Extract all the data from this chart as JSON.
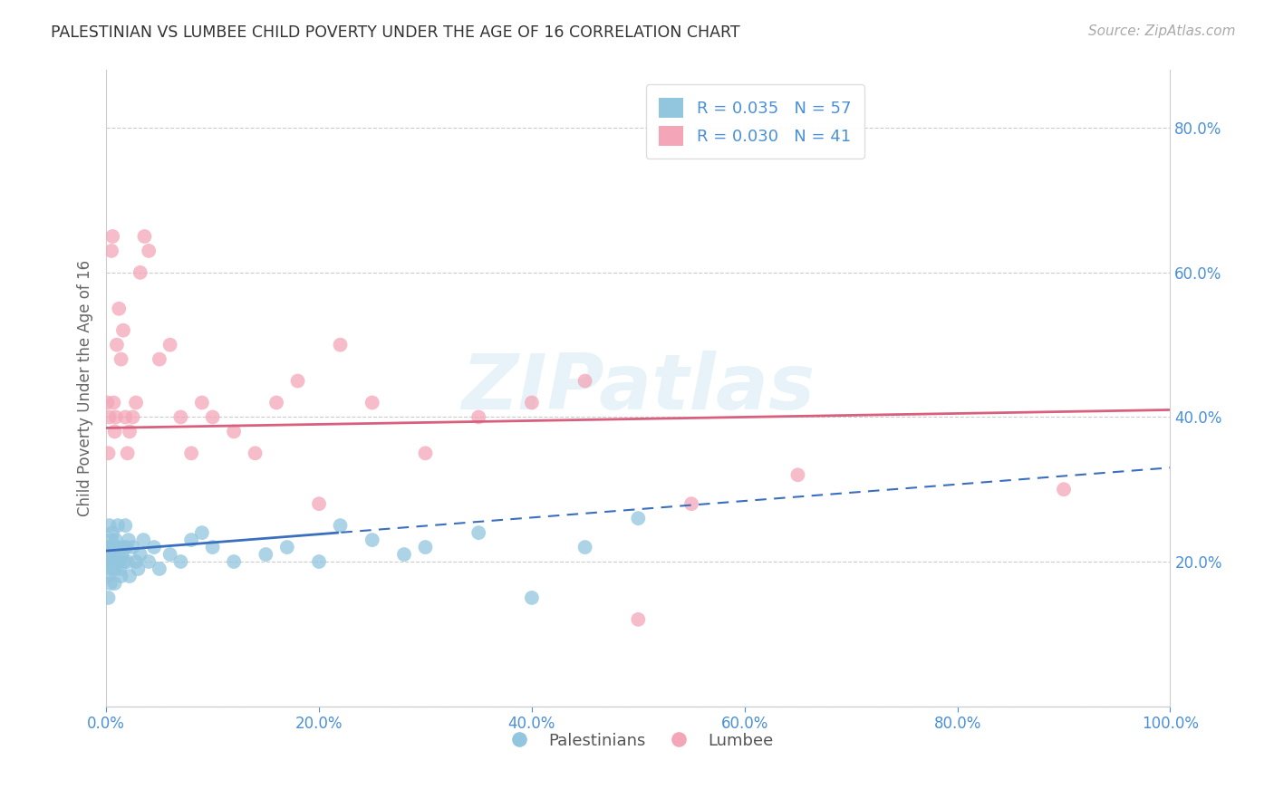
{
  "title": "PALESTINIAN VS LUMBEE CHILD POVERTY UNDER THE AGE OF 16 CORRELATION CHART",
  "source": "Source: ZipAtlas.com",
  "ylabel": "Child Poverty Under the Age of 16",
  "background_color": "#ffffff",
  "watermark": "ZIPatlas",
  "legend_R_blue": "R = 0.035",
  "legend_N_blue": "N = 57",
  "legend_R_pink": "R = 0.030",
  "legend_N_pink": "N = 41",
  "blue_color": "#92c5de",
  "pink_color": "#f4a6b8",
  "trend_blue_color": "#3a6fbf",
  "trend_pink_color": "#d95f7f",
  "palestinians_x": [
    0.001,
    0.001,
    0.002,
    0.002,
    0.003,
    0.003,
    0.004,
    0.004,
    0.005,
    0.005,
    0.006,
    0.006,
    0.007,
    0.007,
    0.008,
    0.008,
    0.009,
    0.009,
    0.01,
    0.01,
    0.011,
    0.012,
    0.013,
    0.014,
    0.015,
    0.016,
    0.017,
    0.018,
    0.019,
    0.02,
    0.021,
    0.022,
    0.025,
    0.028,
    0.03,
    0.032,
    0.035,
    0.04,
    0.045,
    0.05,
    0.06,
    0.07,
    0.08,
    0.09,
    0.1,
    0.12,
    0.15,
    0.17,
    0.2,
    0.22,
    0.25,
    0.28,
    0.3,
    0.35,
    0.4,
    0.45,
    0.5
  ],
  "palestinians_y": [
    0.22,
    0.2,
    0.18,
    0.15,
    0.25,
    0.2,
    0.22,
    0.17,
    0.19,
    0.23,
    0.21,
    0.24,
    0.2,
    0.22,
    0.19,
    0.17,
    0.21,
    0.23,
    0.2,
    0.22,
    0.25,
    0.2,
    0.19,
    0.18,
    0.21,
    0.22,
    0.2,
    0.25,
    0.22,
    0.2,
    0.23,
    0.18,
    0.22,
    0.2,
    0.19,
    0.21,
    0.23,
    0.2,
    0.22,
    0.19,
    0.21,
    0.2,
    0.23,
    0.24,
    0.22,
    0.2,
    0.21,
    0.22,
    0.2,
    0.25,
    0.23,
    0.21,
    0.22,
    0.24,
    0.15,
    0.22,
    0.26
  ],
  "lumbee_x": [
    0.001,
    0.002,
    0.003,
    0.005,
    0.006,
    0.007,
    0.008,
    0.009,
    0.01,
    0.012,
    0.014,
    0.016,
    0.018,
    0.02,
    0.022,
    0.025,
    0.028,
    0.032,
    0.036,
    0.04,
    0.05,
    0.06,
    0.07,
    0.08,
    0.09,
    0.1,
    0.12,
    0.14,
    0.16,
    0.18,
    0.2,
    0.22,
    0.25,
    0.3,
    0.35,
    0.4,
    0.45,
    0.5,
    0.55,
    0.65,
    0.9
  ],
  "lumbee_y": [
    0.42,
    0.35,
    0.4,
    0.63,
    0.65,
    0.42,
    0.38,
    0.4,
    0.5,
    0.55,
    0.48,
    0.52,
    0.4,
    0.35,
    0.38,
    0.4,
    0.42,
    0.6,
    0.65,
    0.63,
    0.48,
    0.5,
    0.4,
    0.35,
    0.42,
    0.4,
    0.38,
    0.35,
    0.42,
    0.45,
    0.28,
    0.5,
    0.42,
    0.35,
    0.4,
    0.42,
    0.45,
    0.12,
    0.28,
    0.32,
    0.3
  ],
  "xlim": [
    0.0,
    1.0
  ],
  "ylim": [
    0.0,
    0.88
  ],
  "xticks": [
    0.0,
    0.2,
    0.4,
    0.6,
    0.8,
    1.0
  ],
  "xtick_labels": [
    "0.0%",
    "20.0%",
    "40.0%",
    "60.0%",
    "80.0%",
    "100.0%"
  ],
  "yticks": [
    0.0,
    0.2,
    0.4,
    0.6,
    0.8
  ],
  "ytick_labels_right": [
    "",
    "20.0%",
    "40.0%",
    "60.0%",
    "80.0%"
  ],
  "grid_color": "#cccccc",
  "tick_color": "#4a90d9",
  "axis_color": "#cccccc",
  "trend_blue_intercept": 0.215,
  "trend_blue_slope": 0.115,
  "trend_pink_intercept": 0.385,
  "trend_pink_slope": 0.025
}
